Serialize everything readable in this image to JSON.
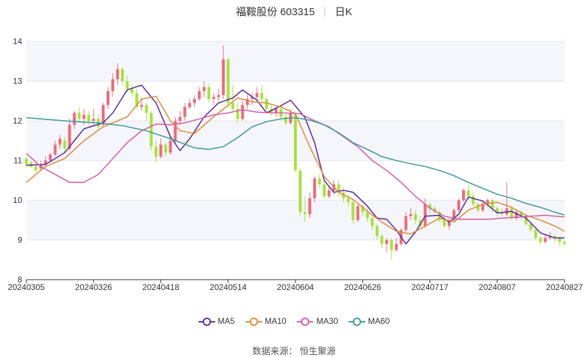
{
  "header": {
    "stock_name": "福鞍股份 603315",
    "period": "日K"
  },
  "legend": [
    {
      "name": "MA5",
      "color": "#5b2c9e"
    },
    {
      "name": "MA10",
      "color": "#e08a3a"
    },
    {
      "name": "MA30",
      "color": "#d45ea8"
    },
    {
      "name": "MA60",
      "color": "#3f9a99"
    }
  ],
  "source": "数据来源： 恒生聚源",
  "colors": {
    "up": "#ee6a7b",
    "down": "#a6e33c"
  },
  "chart_data": {
    "type": "candlestick",
    "ylim": [
      8,
      14
    ],
    "yticks": [
      "8",
      "9",
      "10",
      "11",
      "12",
      "13",
      "14"
    ],
    "x_labels": [
      "20240305",
      "20240326",
      "20240418",
      "20240514",
      "20240604",
      "20240626",
      "20240717",
      "20240807",
      "20240827"
    ],
    "x_label_index": [
      0,
      14,
      28,
      42,
      56,
      70,
      84,
      98,
      112
    ],
    "n": 113,
    "candles": [
      [
        11.05,
        10.9,
        11.1,
        10.85
      ],
      [
        10.95,
        10.85,
        11.0,
        10.8
      ],
      [
        10.85,
        10.75,
        10.95,
        10.7
      ],
      [
        10.8,
        10.9,
        11.0,
        10.75
      ],
      [
        10.9,
        11.0,
        11.1,
        10.85
      ],
      [
        11.0,
        11.15,
        11.2,
        10.95
      ],
      [
        11.15,
        11.4,
        11.5,
        11.1
      ],
      [
        11.4,
        11.55,
        11.65,
        11.3
      ],
      [
        11.5,
        11.3,
        11.6,
        11.2
      ],
      [
        11.3,
        11.9,
        12.05,
        11.25
      ],
      [
        11.9,
        12.2,
        12.25,
        11.8
      ],
      [
        12.2,
        12.05,
        12.35,
        11.95
      ],
      [
        12.05,
        12.15,
        12.3,
        11.9
      ],
      [
        12.15,
        12.0,
        12.25,
        11.9
      ],
      [
        12.0,
        12.05,
        12.3,
        11.9
      ],
      [
        12.05,
        11.85,
        12.15,
        11.8
      ],
      [
        11.9,
        12.4,
        12.45,
        11.85
      ],
      [
        12.4,
        12.75,
        12.85,
        12.3
      ],
      [
        12.75,
        13.05,
        13.2,
        12.6
      ],
      [
        13.05,
        13.3,
        13.45,
        12.9
      ],
      [
        13.3,
        13.0,
        13.35,
        12.9
      ],
      [
        13.0,
        12.8,
        13.15,
        12.7
      ],
      [
        12.8,
        12.7,
        12.9,
        12.6
      ],
      [
        12.7,
        12.35,
        12.8,
        12.3
      ],
      [
        12.35,
        12.4,
        12.55,
        12.25
      ],
      [
        12.4,
        12.2,
        12.45,
        12.0
      ],
      [
        12.2,
        11.35,
        12.25,
        11.25
      ],
      [
        11.35,
        11.1,
        11.5,
        10.95
      ],
      [
        11.1,
        11.4,
        11.55,
        11.05
      ],
      [
        11.4,
        11.2,
        11.45,
        11.1
      ],
      [
        11.2,
        11.5,
        11.6,
        11.15
      ],
      [
        11.5,
        12.0,
        12.1,
        11.45
      ],
      [
        12.0,
        12.1,
        12.25,
        11.9
      ],
      [
        12.1,
        12.35,
        12.45,
        12.0
      ],
      [
        12.35,
        12.45,
        12.55,
        12.3
      ],
      [
        12.45,
        12.55,
        12.65,
        12.35
      ],
      [
        12.55,
        12.75,
        12.85,
        12.5
      ],
      [
        12.75,
        12.85,
        13.0,
        12.6
      ],
      [
        12.85,
        12.55,
        12.95,
        12.45
      ],
      [
        12.55,
        12.6,
        12.7,
        12.4
      ],
      [
        12.6,
        12.65,
        12.8,
        12.5
      ],
      [
        12.65,
        13.55,
        13.9,
        12.55
      ],
      [
        13.55,
        12.45,
        13.6,
        12.35
      ],
      [
        12.45,
        12.3,
        12.9,
        12.2
      ],
      [
        12.3,
        12.05,
        12.45,
        11.95
      ],
      [
        12.05,
        12.4,
        12.5,
        12.0
      ],
      [
        12.4,
        12.55,
        12.65,
        12.3
      ],
      [
        12.55,
        12.6,
        12.7,
        12.4
      ],
      [
        12.6,
        12.7,
        12.85,
        12.5
      ],
      [
        12.7,
        12.55,
        12.9,
        12.45
      ],
      [
        12.55,
        12.3,
        12.6,
        12.2
      ],
      [
        12.3,
        12.2,
        12.4,
        12.1
      ],
      [
        12.2,
        12.3,
        12.35,
        12.1
      ],
      [
        12.3,
        12.1,
        12.35,
        12.0
      ],
      [
        12.1,
        11.95,
        12.2,
        11.9
      ],
      [
        11.95,
        12.2,
        12.3,
        11.9
      ],
      [
        12.2,
        10.75,
        12.25,
        10.7
      ],
      [
        10.75,
        9.7,
        10.8,
        9.6
      ],
      [
        9.7,
        9.65,
        10.1,
        9.45
      ],
      [
        9.65,
        10.05,
        10.2,
        9.55
      ],
      [
        10.05,
        10.55,
        10.6,
        9.95
      ],
      [
        10.55,
        10.4,
        10.65,
        10.3
      ],
      [
        10.4,
        10.1,
        10.5,
        10.05
      ],
      [
        10.1,
        10.25,
        10.35,
        10.05
      ],
      [
        10.25,
        10.4,
        10.5,
        10.15
      ],
      [
        10.4,
        10.2,
        10.5,
        10.1
      ],
      [
        10.2,
        10.05,
        10.3,
        9.95
      ],
      [
        10.05,
        9.95,
        10.15,
        9.85
      ],
      [
        9.95,
        9.5,
        10.0,
        9.4
      ],
      [
        9.5,
        9.85,
        9.9,
        9.45
      ],
      [
        9.85,
        9.7,
        9.9,
        9.6
      ],
      [
        9.7,
        9.55,
        9.8,
        9.45
      ],
      [
        9.55,
        9.35,
        9.6,
        9.25
      ],
      [
        9.35,
        9.1,
        9.4,
        9.0
      ],
      [
        9.1,
        8.9,
        9.15,
        8.8
      ],
      [
        8.9,
        9.0,
        9.05,
        8.7
      ],
      [
        9.0,
        8.75,
        9.05,
        8.5
      ],
      [
        8.75,
        8.9,
        9.05,
        8.7
      ],
      [
        8.9,
        9.25,
        9.3,
        8.85
      ],
      [
        9.25,
        9.6,
        9.7,
        9.2
      ],
      [
        9.6,
        9.65,
        9.8,
        9.5
      ],
      [
        9.65,
        9.5,
        9.75,
        9.4
      ],
      [
        9.5,
        9.35,
        9.6,
        9.3
      ],
      [
        9.35,
        9.9,
        10.05,
        9.3
      ],
      [
        9.9,
        9.8,
        9.95,
        9.65
      ],
      [
        9.8,
        9.7,
        9.85,
        9.6
      ],
      [
        9.7,
        9.5,
        9.75,
        9.45
      ],
      [
        9.5,
        9.35,
        9.55,
        9.3
      ],
      [
        9.35,
        9.5,
        9.55,
        9.25
      ],
      [
        9.5,
        9.75,
        9.8,
        9.45
      ],
      [
        9.75,
        10.0,
        10.05,
        9.7
      ],
      [
        10.0,
        10.25,
        10.3,
        9.95
      ],
      [
        10.25,
        10.1,
        10.4,
        10.0
      ],
      [
        10.1,
        9.9,
        10.2,
        9.85
      ],
      [
        9.9,
        9.75,
        9.95,
        9.7
      ],
      [
        9.75,
        9.9,
        9.95,
        9.7
      ],
      [
        9.9,
        10.0,
        10.05,
        9.85
      ],
      [
        10.0,
        9.8,
        10.05,
        9.7
      ],
      [
        9.8,
        9.7,
        9.85,
        9.6
      ],
      [
        9.7,
        9.65,
        9.8,
        9.6
      ],
      [
        9.65,
        9.8,
        10.45,
        9.6
      ],
      [
        9.8,
        9.55,
        9.85,
        9.5
      ],
      [
        9.55,
        9.7,
        9.75,
        9.5
      ],
      [
        9.7,
        9.6,
        9.75,
        9.5
      ],
      [
        9.6,
        9.4,
        9.65,
        9.35
      ],
      [
        9.4,
        9.25,
        9.45,
        9.2
      ],
      [
        9.25,
        9.05,
        9.3,
        9.0
      ],
      [
        9.05,
        8.95,
        9.1,
        8.9
      ],
      [
        8.95,
        9.05,
        9.15,
        8.9
      ],
      [
        9.05,
        9.1,
        9.2,
        9.0
      ],
      [
        9.1,
        9.05,
        9.15,
        8.95
      ],
      [
        9.05,
        8.95,
        9.1,
        8.85
      ],
      [
        8.95,
        8.9,
        9.0,
        8.85
      ]
    ],
    "ma": {
      "MA5": [
        [
          0,
          10.88
        ],
        [
          4,
          10.9
        ],
        [
          8,
          11.2
        ],
        [
          12,
          11.8
        ],
        [
          16,
          11.95
        ],
        [
          18,
          12.2
        ],
        [
          21,
          12.78
        ],
        [
          24,
          12.9
        ],
        [
          27,
          12.45
        ],
        [
          30,
          11.6
        ],
        [
          32,
          11.25
        ],
        [
          34,
          11.55
        ],
        [
          37,
          12.1
        ],
        [
          40,
          12.45
        ],
        [
          43,
          12.58
        ],
        [
          45,
          12.78
        ],
        [
          48,
          12.52
        ],
        [
          50,
          12.2
        ],
        [
          53,
          12.38
        ],
        [
          55,
          12.52
        ],
        [
          58,
          12.08
        ],
        [
          60,
          11.45
        ],
        [
          62,
          10.5
        ],
        [
          64,
          10.2
        ],
        [
          66,
          10.25
        ],
        [
          68,
          10.2
        ],
        [
          71,
          9.85
        ],
        [
          73,
          9.55
        ],
        [
          75,
          9.52
        ],
        [
          77,
          9.25
        ],
        [
          79,
          8.9
        ],
        [
          81,
          9.2
        ],
        [
          83,
          9.6
        ],
        [
          86,
          9.62
        ],
        [
          88,
          9.45
        ],
        [
          90,
          9.65
        ],
        [
          92,
          10.08
        ],
        [
          95,
          9.98
        ],
        [
          98,
          9.68
        ],
        [
          101,
          9.72
        ],
        [
          104,
          9.55
        ],
        [
          107,
          9.18
        ],
        [
          110,
          9.05
        ],
        [
          112,
          9.05
        ]
      ],
      "MA10": [
        [
          0,
          10.45
        ],
        [
          4,
          10.85
        ],
        [
          8,
          11.05
        ],
        [
          12,
          11.5
        ],
        [
          16,
          11.85
        ],
        [
          18,
          11.95
        ],
        [
          21,
          12.1
        ],
        [
          24,
          12.55
        ],
        [
          27,
          12.62
        ],
        [
          30,
          12.0
        ],
        [
          32,
          11.75
        ],
        [
          35,
          11.68
        ],
        [
          38,
          12.0
        ],
        [
          41,
          12.3
        ],
        [
          44,
          12.58
        ],
        [
          47,
          12.48
        ],
        [
          50,
          12.45
        ],
        [
          53,
          12.35
        ],
        [
          56,
          12.18
        ],
        [
          59,
          11.35
        ],
        [
          62,
          10.6
        ],
        [
          65,
          10.2
        ],
        [
          68,
          10.02
        ],
        [
          71,
          9.72
        ],
        [
          74,
          9.45
        ],
        [
          77,
          9.22
        ],
        [
          80,
          9.15
        ],
        [
          83,
          9.35
        ],
        [
          86,
          9.55
        ],
        [
          89,
          9.45
        ],
        [
          92,
          9.75
        ],
        [
          95,
          9.9
        ],
        [
          98,
          9.95
        ],
        [
          101,
          9.82
        ],
        [
          104,
          9.62
        ],
        [
          107,
          9.5
        ],
        [
          110,
          9.35
        ],
        [
          112,
          9.22
        ]
      ],
      "MA30": [
        [
          0,
          11.18
        ],
        [
          3,
          10.85
        ],
        [
          6,
          10.65
        ],
        [
          9,
          10.45
        ],
        [
          12,
          10.45
        ],
        [
          15,
          10.65
        ],
        [
          18,
          11.05
        ],
        [
          21,
          11.45
        ],
        [
          24,
          11.75
        ],
        [
          27,
          11.92
        ],
        [
          30,
          11.9
        ],
        [
          33,
          11.95
        ],
        [
          36,
          12.05
        ],
        [
          39,
          12.15
        ],
        [
          42,
          12.2
        ],
        [
          45,
          12.28
        ],
        [
          48,
          12.22
        ],
        [
          51,
          12.2
        ],
        [
          54,
          12.2
        ],
        [
          57,
          12.18
        ],
        [
          60,
          12.0
        ],
        [
          63,
          11.85
        ],
        [
          66,
          11.6
        ],
        [
          69,
          11.35
        ],
        [
          72,
          11.0
        ],
        [
          75,
          10.75
        ],
        [
          78,
          10.45
        ],
        [
          81,
          10.1
        ],
        [
          84,
          9.8
        ],
        [
          87,
          9.6
        ],
        [
          90,
          9.52
        ],
        [
          93,
          9.52
        ],
        [
          96,
          9.52
        ],
        [
          99,
          9.55
        ],
        [
          102,
          9.57
        ],
        [
          105,
          9.6
        ],
        [
          108,
          9.62
        ],
        [
          110,
          9.6
        ],
        [
          112,
          9.58
        ]
      ],
      "MA60": [
        [
          0,
          12.08
        ],
        [
          5,
          12.03
        ],
        [
          10,
          11.98
        ],
        [
          15,
          11.95
        ],
        [
          20,
          11.88
        ],
        [
          25,
          11.75
        ],
        [
          30,
          11.55
        ],
        [
          35,
          11.32
        ],
        [
          38,
          11.28
        ],
        [
          41,
          11.35
        ],
        [
          44,
          11.58
        ],
        [
          47,
          11.85
        ],
        [
          50,
          11.98
        ],
        [
          53,
          12.05
        ],
        [
          56,
          12.08
        ],
        [
          59,
          12.02
        ],
        [
          62,
          11.9
        ],
        [
          65,
          11.7
        ],
        [
          68,
          11.45
        ],
        [
          71,
          11.28
        ],
        [
          74,
          11.1
        ],
        [
          77,
          11.0
        ],
        [
          80,
          10.92
        ],
        [
          83,
          10.85
        ],
        [
          86,
          10.75
        ],
        [
          89,
          10.62
        ],
        [
          92,
          10.45
        ],
        [
          95,
          10.3
        ],
        [
          98,
          10.15
        ],
        [
          101,
          10.05
        ],
        [
          104,
          9.92
        ],
        [
          107,
          9.82
        ],
        [
          110,
          9.7
        ],
        [
          112,
          9.63
        ]
      ]
    }
  }
}
